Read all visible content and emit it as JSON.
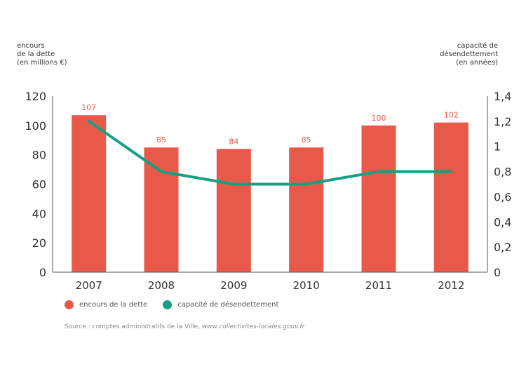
{
  "chart_data": {
    "type": "bar",
    "title": "",
    "categories": [
      "2007",
      "2008",
      "2009",
      "2010",
      "2011",
      "2012"
    ],
    "series": [
      {
        "name": "encours de la dette",
        "kind": "bar",
        "axis": "left",
        "color": "#e8594a",
        "values": [
          107,
          85,
          84,
          85,
          100,
          102
        ],
        "labels": [
          "107",
          "85",
          "84",
          "85",
          "100",
          "102"
        ]
      },
      {
        "name": "capacité de désendettement",
        "kind": "line",
        "axis": "right",
        "color": "#13a182",
        "values": [
          1.2,
          0.8,
          0.7,
          0.7,
          0.8,
          0.8
        ]
      }
    ],
    "left_axis": {
      "title_lines": [
        "encours",
        "de la dette",
        "(en millions €)"
      ],
      "ylim": [
        0,
        120
      ],
      "ticks": [
        0,
        20,
        40,
        60,
        80,
        100,
        120
      ],
      "tick_labels": [
        "0",
        "20",
        "40",
        "60",
        "80",
        "100",
        "120"
      ]
    },
    "right_axis": {
      "title_lines": [
        "capacité de",
        "désendettement",
        "(en années)"
      ],
      "ylim": [
        0,
        1.4
      ],
      "ticks": [
        0,
        0.2,
        0.4,
        0.6,
        0.8,
        1,
        1.2,
        1.4
      ],
      "tick_labels": [
        "0",
        "0,2",
        "0,4",
        "0,6",
        "0,8",
        "1",
        "1,2",
        "1,4"
      ]
    },
    "grid": false,
    "legend": {
      "placement": "bottom-left",
      "entries": [
        "encours de la dette",
        "capacité de désendettement"
      ]
    },
    "source": {
      "prefix": "Source : comptes administratifs de la Ville, ",
      "link": "www.collectivites-locales.gouv.fr"
    }
  }
}
